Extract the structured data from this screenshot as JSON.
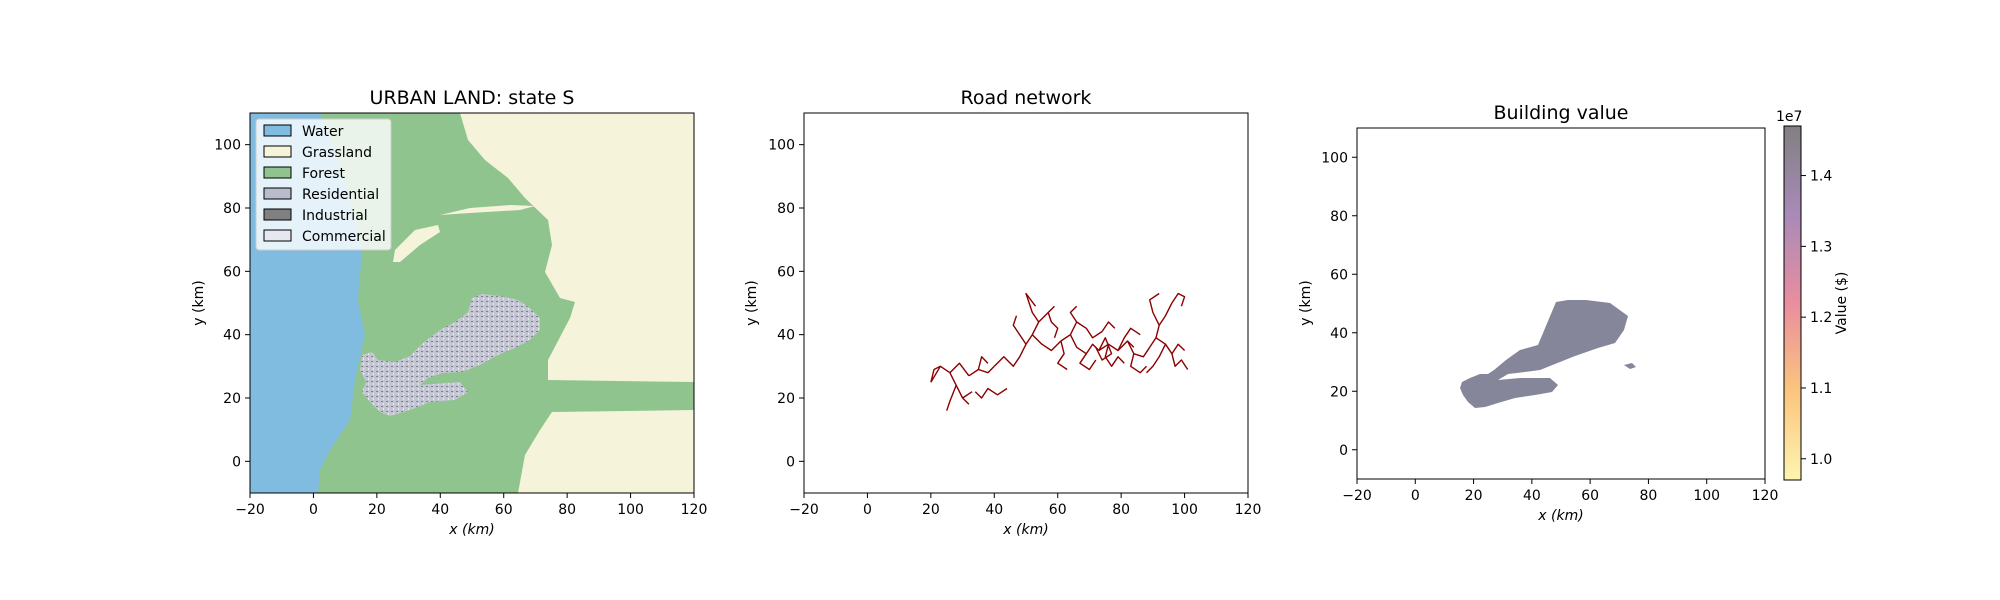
{
  "chart_data": [
    {
      "type": "heatmap",
      "title": "URBAN LAND: state S",
      "xlabel": "x (km)",
      "ylabel": "y (km)",
      "xlim": [
        -20,
        120
      ],
      "ylim": [
        -10,
        110
      ],
      "xticks": [
        -20,
        0,
        20,
        40,
        60,
        80,
        100,
        120
      ],
      "yticks": [
        0,
        20,
        40,
        60,
        80,
        100
      ],
      "legend": {
        "placement": "top-left",
        "entries": [
          {
            "label": "Water",
            "color": "#7fbcdf"
          },
          {
            "label": "Grassland",
            "color": "#f5f4da"
          },
          {
            "label": "Forest",
            "color": "#8fc48f"
          },
          {
            "label": "Residential",
            "color": "#b9bccb"
          },
          {
            "label": "Industrial",
            "color": "#808080"
          },
          {
            "label": "Commercial",
            "color": "#e6e8f0"
          }
        ]
      }
    },
    {
      "type": "line",
      "title": "Road network",
      "xlabel": "x (km)",
      "ylabel": "y (km)",
      "xlim": [
        -20,
        120
      ],
      "ylim": [
        -10,
        110
      ],
      "xticks": [
        -20,
        0,
        20,
        40,
        60,
        80,
        100,
        120
      ],
      "yticks": [
        0,
        20,
        40,
        60,
        80,
        100
      ],
      "color": "#8b0000",
      "segments": [
        [
          [
            20,
            25
          ],
          [
            23,
            30
          ],
          [
            26,
            28
          ],
          [
            29,
            31
          ],
          [
            32,
            27
          ]
        ],
        [
          [
            23,
            30
          ],
          [
            21,
            29
          ],
          [
            20,
            25
          ]
        ],
        [
          [
            26,
            28
          ],
          [
            28,
            24
          ],
          [
            30,
            20
          ],
          [
            32,
            18
          ]
        ],
        [
          [
            28,
            24
          ],
          [
            26,
            19
          ],
          [
            25,
            16
          ]
        ],
        [
          [
            32,
            27
          ],
          [
            35,
            29
          ],
          [
            38,
            28
          ],
          [
            40,
            30
          ]
        ],
        [
          [
            34,
            22
          ],
          [
            36,
            20
          ],
          [
            38,
            23
          ],
          [
            41,
            21
          ],
          [
            44,
            23
          ]
        ],
        [
          [
            33,
            22
          ],
          [
            30,
            20
          ]
        ],
        [
          [
            40,
            30
          ],
          [
            43,
            33
          ],
          [
            46,
            30
          ],
          [
            48,
            33
          ],
          [
            50,
            37
          ]
        ],
        [
          [
            35,
            29
          ],
          [
            36,
            33
          ],
          [
            38,
            31
          ]
        ],
        [
          [
            50,
            37
          ],
          [
            52,
            40
          ],
          [
            54,
            44
          ],
          [
            57,
            47
          ],
          [
            59,
            49
          ]
        ],
        [
          [
            50,
            37
          ],
          [
            48,
            40
          ],
          [
            46,
            43
          ],
          [
            47,
            46
          ]
        ],
        [
          [
            52,
            40
          ],
          [
            55,
            37
          ],
          [
            58,
            35
          ],
          [
            61,
            38
          ]
        ],
        [
          [
            54,
            44
          ],
          [
            52,
            47
          ],
          [
            50,
            53
          ],
          [
            53,
            49
          ]
        ],
        [
          [
            57,
            47
          ],
          [
            58,
            44
          ],
          [
            60,
            42
          ],
          [
            59,
            39
          ]
        ],
        [
          [
            61,
            38
          ],
          [
            64,
            40
          ],
          [
            66,
            44
          ],
          [
            64,
            47
          ],
          [
            66,
            49
          ]
        ],
        [
          [
            64,
            40
          ],
          [
            66,
            36
          ],
          [
            69,
            34
          ],
          [
            71,
            37
          ],
          [
            73,
            35
          ]
        ],
        [
          [
            66,
            44
          ],
          [
            69,
            42
          ],
          [
            71,
            39
          ],
          [
            74,
            41
          ]
        ],
        [
          [
            69,
            34
          ],
          [
            67,
            31
          ],
          [
            70,
            29
          ],
          [
            72,
            32
          ]
        ],
        [
          [
            73,
            35
          ],
          [
            76,
            37
          ],
          [
            79,
            35
          ],
          [
            82,
            38
          ],
          [
            84,
            36
          ]
        ],
        [
          [
            76,
            37
          ],
          [
            75,
            33
          ],
          [
            77,
            30
          ],
          [
            79,
            33
          ],
          [
            81,
            31
          ]
        ],
        [
          [
            79,
            35
          ],
          [
            81,
            39
          ],
          [
            83,
            42
          ],
          [
            86,
            40
          ]
        ],
        [
          [
            82,
            38
          ],
          [
            84,
            34
          ],
          [
            87,
            33
          ],
          [
            89,
            36
          ]
        ],
        [
          [
            84,
            34
          ],
          [
            83,
            30
          ],
          [
            86,
            28
          ],
          [
            88,
            30
          ]
        ],
        [
          [
            89,
            36
          ],
          [
            91,
            39
          ],
          [
            92,
            43
          ],
          [
            94,
            46
          ],
          [
            96,
            50
          ]
        ],
        [
          [
            91,
            39
          ],
          [
            94,
            37
          ],
          [
            96,
            34
          ],
          [
            98,
            37
          ],
          [
            100,
            35
          ]
        ],
        [
          [
            94,
            37
          ],
          [
            92,
            33
          ],
          [
            90,
            30
          ],
          [
            88,
            28
          ]
        ],
        [
          [
            96,
            50
          ],
          [
            98,
            53
          ],
          [
            100,
            52
          ],
          [
            99,
            49
          ]
        ],
        [
          [
            92,
            43
          ],
          [
            90,
            47
          ],
          [
            89,
            51
          ],
          [
            92,
            53
          ]
        ],
        [
          [
            96,
            34
          ],
          [
            97,
            30
          ],
          [
            99,
            32
          ],
          [
            101,
            29
          ]
        ],
        [
          [
            61,
            38
          ],
          [
            62,
            34
          ],
          [
            60,
            31
          ],
          [
            63,
            29
          ]
        ],
        [
          [
            74,
            41
          ],
          [
            76,
            44
          ],
          [
            78,
            42
          ]
        ],
        [
          [
            73,
            35
          ],
          [
            75,
            39
          ],
          [
            77,
            34
          ],
          [
            74,
            32
          ],
          [
            72,
            36
          ]
        ]
      ]
    },
    {
      "type": "heatmap",
      "title": "Building value",
      "xlabel": "x (km)",
      "ylabel": "y (km)",
      "xlim": [
        -20,
        120
      ],
      "ylim": [
        -10,
        110
      ],
      "xticks": [
        -20,
        0,
        20,
        40,
        60,
        80,
        100,
        120
      ],
      "yticks": [
        0,
        20,
        40,
        60,
        80,
        100
      ],
      "colorbar": {
        "label": "Value ($)",
        "offset_text": "1e7",
        "range": [
          0.97,
          1.47
        ],
        "ticks": [
          1.0,
          1.1,
          1.2,
          1.3,
          1.4
        ],
        "colors": [
          "#fdf5b0",
          "#fbc57e",
          "#e88e9e",
          "#a98ab8",
          "#818081"
        ]
      },
      "fill_color": "#858699"
    }
  ]
}
